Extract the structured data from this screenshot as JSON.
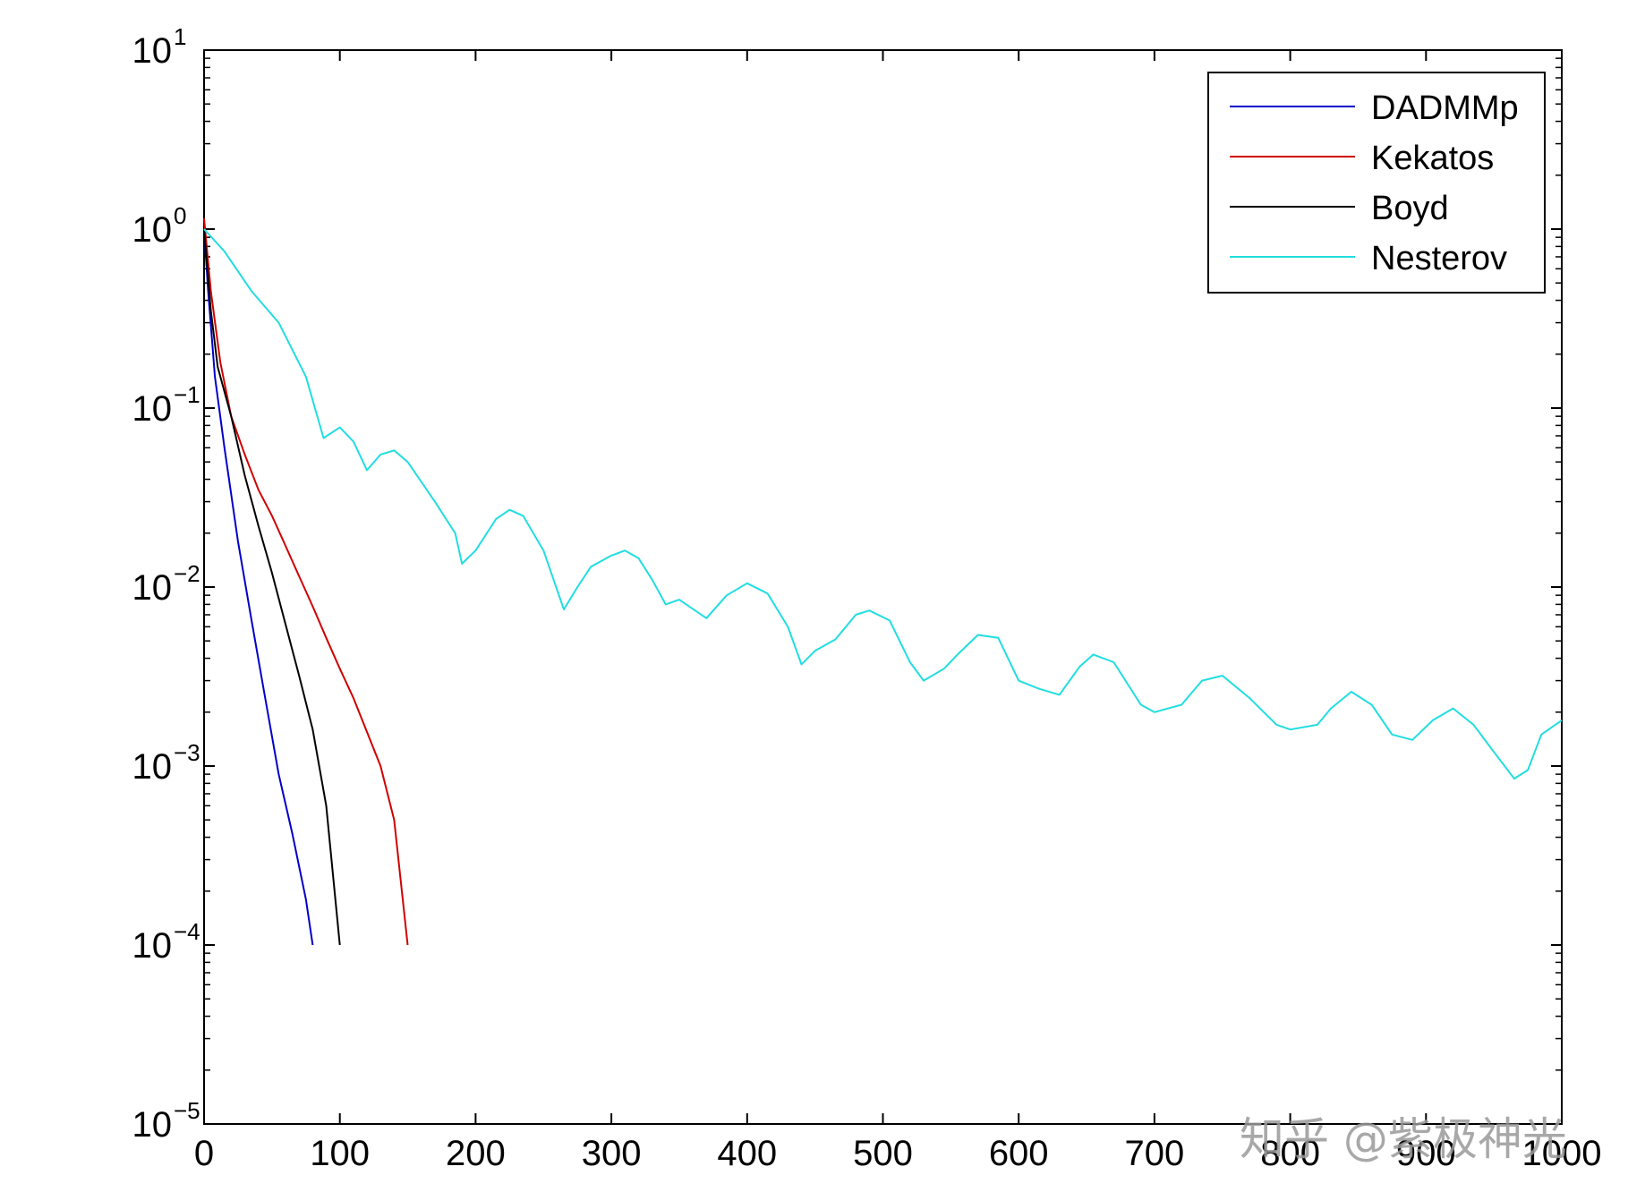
{
  "chart_data": {
    "type": "line",
    "title": "",
    "xlabel": "",
    "ylabel": "",
    "x_scale": "linear",
    "y_scale": "log",
    "xlim": [
      0,
      1000
    ],
    "ylim": [
      1e-05,
      10
    ],
    "x_ticks": [
      "0",
      "100",
      "200",
      "300",
      "400",
      "500",
      "600",
      "700",
      "800",
      "900",
      "1000"
    ],
    "y_ticks": [
      {
        "base": "10",
        "exp": "1",
        "value": 10
      },
      {
        "base": "10",
        "exp": "0",
        "value": 1
      },
      {
        "base": "10",
        "exp": "−1",
        "value": 0.1
      },
      {
        "base": "10",
        "exp": "−2",
        "value": 0.01
      },
      {
        "base": "10",
        "exp": "−3",
        "value": 0.001
      },
      {
        "base": "10",
        "exp": "−4",
        "value": 0.0001
      },
      {
        "base": "10",
        "exp": "−5",
        "value": 1e-05
      }
    ],
    "grid": false,
    "legend_position": "top-right",
    "series": [
      {
        "name": "DADMMp",
        "color": "#0000c8",
        "points": [
          [
            0,
            1.0
          ],
          [
            3,
            0.45
          ],
          [
            8,
            0.15
          ],
          [
            15,
            0.06
          ],
          [
            25,
            0.018
          ],
          [
            35,
            0.0065
          ],
          [
            45,
            0.0024
          ],
          [
            55,
            0.0009
          ],
          [
            65,
            0.00042
          ],
          [
            75,
            0.00018
          ],
          [
            80,
            0.0001
          ]
        ]
      },
      {
        "name": "Kekatos",
        "color": "#d00000",
        "points": [
          [
            0,
            1.15
          ],
          [
            5,
            0.45
          ],
          [
            12,
            0.18
          ],
          [
            20,
            0.09
          ],
          [
            30,
            0.055
          ],
          [
            40,
            0.035
          ],
          [
            50,
            0.025
          ],
          [
            60,
            0.017
          ],
          [
            70,
            0.0115
          ],
          [
            80,
            0.0078
          ],
          [
            90,
            0.0052
          ],
          [
            100,
            0.0035
          ],
          [
            110,
            0.0024
          ],
          [
            120,
            0.00155
          ],
          [
            130,
            0.001
          ],
          [
            140,
            0.0005
          ],
          [
            150,
            0.0001
          ]
        ]
      },
      {
        "name": "Boyd",
        "color": "#000000",
        "points": [
          [
            0,
            1.0
          ],
          [
            5,
            0.35
          ],
          [
            10,
            0.17
          ],
          [
            20,
            0.09
          ],
          [
            30,
            0.042
          ],
          [
            40,
            0.022
          ],
          [
            50,
            0.012
          ],
          [
            60,
            0.0062
          ],
          [
            70,
            0.0032
          ],
          [
            80,
            0.0016
          ],
          [
            90,
            0.0006
          ],
          [
            100,
            0.0001
          ]
        ]
      },
      {
        "name": "Nesterov",
        "color": "#22dde0",
        "points": [
          [
            0,
            1.0
          ],
          [
            15,
            0.75
          ],
          [
            35,
            0.45
          ],
          [
            55,
            0.3
          ],
          [
            75,
            0.15
          ],
          [
            88,
            0.068
          ],
          [
            100,
            0.078
          ],
          [
            110,
            0.065
          ],
          [
            120,
            0.045
          ],
          [
            130,
            0.055
          ],
          [
            140,
            0.058
          ],
          [
            150,
            0.05
          ],
          [
            170,
            0.03
          ],
          [
            185,
            0.02
          ],
          [
            190,
            0.0135
          ],
          [
            200,
            0.016
          ],
          [
            215,
            0.024
          ],
          [
            225,
            0.027
          ],
          [
            235,
            0.025
          ],
          [
            250,
            0.016
          ],
          [
            265,
            0.0075
          ],
          [
            275,
            0.01
          ],
          [
            285,
            0.013
          ],
          [
            300,
            0.015
          ],
          [
            310,
            0.016
          ],
          [
            320,
            0.0145
          ],
          [
            330,
            0.011
          ],
          [
            340,
            0.008
          ],
          [
            350,
            0.0085
          ],
          [
            370,
            0.0067
          ],
          [
            385,
            0.009
          ],
          [
            400,
            0.0105
          ],
          [
            415,
            0.0092
          ],
          [
            430,
            0.006
          ],
          [
            440,
            0.0037
          ],
          [
            450,
            0.0044
          ],
          [
            465,
            0.0051
          ],
          [
            480,
            0.007
          ],
          [
            490,
            0.0074
          ],
          [
            505,
            0.0065
          ],
          [
            520,
            0.0038
          ],
          [
            530,
            0.003
          ],
          [
            545,
            0.0035
          ],
          [
            555,
            0.0042
          ],
          [
            570,
            0.0054
          ],
          [
            585,
            0.0052
          ],
          [
            600,
            0.003
          ],
          [
            615,
            0.0027
          ],
          [
            630,
            0.0025
          ],
          [
            645,
            0.0036
          ],
          [
            655,
            0.0042
          ],
          [
            670,
            0.0038
          ],
          [
            690,
            0.0022
          ],
          [
            700,
            0.002
          ],
          [
            720,
            0.0022
          ],
          [
            735,
            0.003
          ],
          [
            750,
            0.0032
          ],
          [
            770,
            0.0024
          ],
          [
            790,
            0.0017
          ],
          [
            800,
            0.0016
          ],
          [
            820,
            0.0017
          ],
          [
            830,
            0.0021
          ],
          [
            845,
            0.0026
          ],
          [
            860,
            0.0022
          ],
          [
            875,
            0.0015
          ],
          [
            890,
            0.0014
          ],
          [
            905,
            0.0018
          ],
          [
            920,
            0.0021
          ],
          [
            935,
            0.0017
          ],
          [
            950,
            0.0012
          ],
          [
            965,
            0.00085
          ],
          [
            975,
            0.00095
          ],
          [
            985,
            0.0015
          ],
          [
            1000,
            0.0018
          ]
        ]
      }
    ]
  },
  "watermark": "知乎 @紫极神光"
}
